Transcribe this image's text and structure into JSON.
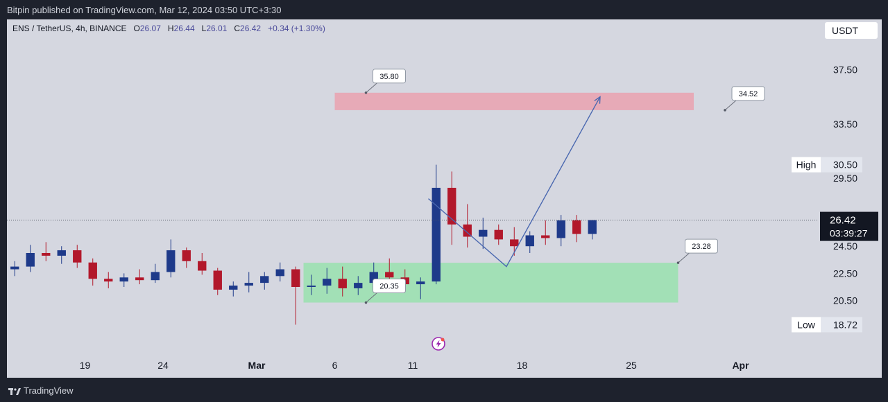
{
  "header": {
    "published": "Bitpin published on TradingView.com, Mar 12, 2024 03:50 UTC+3:30"
  },
  "symbol_bar": {
    "symbol": "ENS / TetherUS, 4h, BINANCE",
    "open_label": "O",
    "open": "26.07",
    "high_label": "H",
    "high": "26.44",
    "low_label": "L",
    "low": "26.01",
    "close_label": "C",
    "close": "26.42",
    "change": "+0.34 (+1.30%)"
  },
  "unit": "USDT",
  "footer": {
    "brand": "TradingView"
  },
  "colors": {
    "up": "#1e3a8a",
    "down": "#b2182b",
    "supply_zone": "#e8a8b4",
    "demand_zone": "#9fe0b3",
    "projection": "#4a68b0",
    "background": "#d5d7e0"
  },
  "chart_data": {
    "type": "candlestick",
    "y_axis": {
      "range": [
        16.6,
        41.2
      ],
      "ticks": [
        "37.50",
        "33.50",
        "29.50",
        "24.50",
        "22.50",
        "20.50"
      ],
      "tick_values": [
        37.5,
        33.5,
        29.5,
        24.5,
        22.5,
        20.5
      ]
    },
    "x_axis": {
      "ticks": [
        "19",
        "24",
        "Mar",
        "6",
        "11",
        "18",
        "25",
        "Apr"
      ],
      "tick_dates": [
        "2024-02-19",
        "2024-02-24",
        "2024-03-01",
        "2024-03-06",
        "2024-03-11",
        "2024-03-18",
        "2024-03-25",
        "2024-04-01"
      ],
      "range": [
        "2024-02-14",
        "2024-04-06"
      ]
    },
    "last_price": {
      "value": 26.42,
      "label": "26.42",
      "countdown": "03:39:27"
    },
    "high_marker": {
      "label": "High",
      "value": 30.5,
      "value_label": "30.50"
    },
    "low_marker": {
      "label": "Low",
      "value": 18.72,
      "value_label": "18.72"
    },
    "zones": [
      {
        "name": "supply",
        "from": 34.52,
        "to": 35.8,
        "start": "2024-03-06",
        "end": "2024-03-29"
      },
      {
        "name": "demand",
        "from": 20.35,
        "to": 23.28,
        "start": "2024-03-04",
        "end": "2024-03-28"
      }
    ],
    "callouts": [
      {
        "label": "35.80",
        "value": 35.8,
        "date": "2024-03-08"
      },
      {
        "label": "34.52",
        "value": 34.52,
        "date": "2024-03-31"
      },
      {
        "label": "23.28",
        "value": 23.28,
        "date": "2024-03-28"
      },
      {
        "label": "20.35",
        "value": 20.35,
        "date": "2024-03-08"
      }
    ],
    "projection_path": [
      {
        "date": "2024-03-12",
        "value": 28.0
      },
      {
        "date": "2024-03-17",
        "value": 23.0
      },
      {
        "date": "2024-03-23",
        "value": 35.5
      }
    ],
    "candles": [
      {
        "date": "2024-02-14",
        "o": 22.8,
        "h": 23.4,
        "l": 22.3,
        "c": 23.0
      },
      {
        "date": "2024-02-15",
        "o": 23.0,
        "h": 24.6,
        "l": 22.6,
        "c": 24.0
      },
      {
        "date": "2024-02-16",
        "o": 24.0,
        "h": 24.8,
        "l": 23.4,
        "c": 23.8
      },
      {
        "date": "2024-02-17",
        "o": 23.8,
        "h": 24.5,
        "l": 23.2,
        "c": 24.2
      },
      {
        "date": "2024-02-18",
        "o": 24.2,
        "h": 24.6,
        "l": 22.9,
        "c": 23.3
      },
      {
        "date": "2024-02-19",
        "o": 23.3,
        "h": 23.6,
        "l": 21.6,
        "c": 22.1
      },
      {
        "date": "2024-02-20",
        "o": 22.1,
        "h": 22.6,
        "l": 21.4,
        "c": 21.9
      },
      {
        "date": "2024-02-21",
        "o": 21.9,
        "h": 22.5,
        "l": 21.5,
        "c": 22.2
      },
      {
        "date": "2024-02-22",
        "o": 22.2,
        "h": 22.8,
        "l": 21.7,
        "c": 22.0
      },
      {
        "date": "2024-02-23",
        "o": 22.0,
        "h": 23.2,
        "l": 21.8,
        "c": 22.6
      },
      {
        "date": "2024-02-24",
        "o": 22.6,
        "h": 25.0,
        "l": 22.2,
        "c": 24.2
      },
      {
        "date": "2024-02-25",
        "o": 24.2,
        "h": 24.4,
        "l": 22.9,
        "c": 23.4
      },
      {
        "date": "2024-02-26",
        "o": 23.4,
        "h": 24.0,
        "l": 22.4,
        "c": 22.7
      },
      {
        "date": "2024-02-27",
        "o": 22.7,
        "h": 22.9,
        "l": 20.9,
        "c": 21.3
      },
      {
        "date": "2024-02-28",
        "o": 21.3,
        "h": 21.9,
        "l": 20.8,
        "c": 21.6
      },
      {
        "date": "2024-02-29",
        "o": 21.6,
        "h": 22.6,
        "l": 21.1,
        "c": 21.8
      },
      {
        "date": "2024-03-01",
        "o": 21.8,
        "h": 22.6,
        "l": 21.3,
        "c": 22.3
      },
      {
        "date": "2024-03-02",
        "o": 22.3,
        "h": 23.3,
        "l": 21.9,
        "c": 22.8
      },
      {
        "date": "2024-03-03",
        "o": 22.8,
        "h": 23.0,
        "l": 18.72,
        "c": 21.5
      },
      {
        "date": "2024-03-04",
        "o": 21.5,
        "h": 22.4,
        "l": 20.9,
        "c": 21.6
      },
      {
        "date": "2024-03-05",
        "o": 21.6,
        "h": 22.9,
        "l": 21.0,
        "c": 22.1
      },
      {
        "date": "2024-03-06",
        "o": 22.1,
        "h": 23.0,
        "l": 20.8,
        "c": 21.4
      },
      {
        "date": "2024-03-07",
        "o": 21.4,
        "h": 22.3,
        "l": 20.9,
        "c": 21.8
      },
      {
        "date": "2024-03-08",
        "o": 21.8,
        "h": 23.3,
        "l": 21.4,
        "c": 22.6
      },
      {
        "date": "2024-03-09",
        "o": 22.6,
        "h": 23.6,
        "l": 21.7,
        "c": 22.2
      },
      {
        "date": "2024-03-10",
        "o": 22.2,
        "h": 22.8,
        "l": 21.3,
        "c": 21.7
      },
      {
        "date": "2024-03-11",
        "o": 21.7,
        "h": 22.2,
        "l": 20.6,
        "c": 21.9
      },
      {
        "date": "2024-03-12",
        "o": 21.9,
        "h": 30.5,
        "l": 21.7,
        "c": 28.8
      },
      {
        "date": "2024-03-13",
        "o": 28.8,
        "h": 30.0,
        "l": 24.6,
        "c": 26.1
      },
      {
        "date": "2024-03-14",
        "o": 26.1,
        "h": 27.6,
        "l": 24.4,
        "c": 25.2
      },
      {
        "date": "2024-03-15",
        "o": 25.2,
        "h": 26.6,
        "l": 24.3,
        "c": 25.7
      },
      {
        "date": "2024-03-16",
        "o": 25.7,
        "h": 26.1,
        "l": 24.6,
        "c": 25.0
      },
      {
        "date": "2024-03-17",
        "o": 25.0,
        "h": 25.9,
        "l": 23.8,
        "c": 24.5
      },
      {
        "date": "2024-03-18",
        "o": 24.5,
        "h": 25.6,
        "l": 24.0,
        "c": 25.3
      },
      {
        "date": "2024-03-19",
        "o": 25.3,
        "h": 26.4,
        "l": 24.6,
        "c": 25.1
      },
      {
        "date": "2024-03-20",
        "o": 25.1,
        "h": 26.8,
        "l": 24.5,
        "c": 26.4
      },
      {
        "date": "2024-03-21",
        "o": 26.4,
        "h": 26.8,
        "l": 24.8,
        "c": 25.4
      },
      {
        "date": "2024-03-22",
        "o": 25.4,
        "h": 26.3,
        "l": 25.0,
        "c": 26.42
      }
    ]
  }
}
